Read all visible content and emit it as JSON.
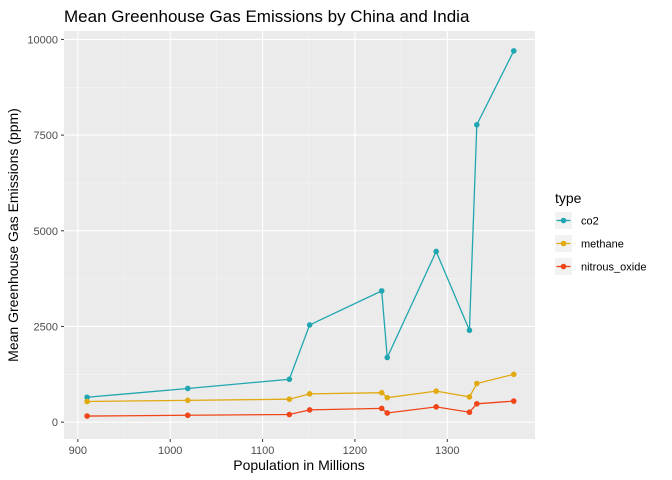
{
  "chart_data": {
    "type": "line",
    "title": "Mean Greenhouse Gas Emissions by China and India",
    "xlabel": "Population in Millions",
    "ylabel": "Mean Greenhouse Gas Emissions (ppm)",
    "xlim": [
      885,
      1395
    ],
    "ylim": [
      -440,
      10220
    ],
    "x_ticks": [
      900,
      1000,
      1100,
      1200,
      1300
    ],
    "y_ticks": [
      0,
      2500,
      5000,
      7500,
      10000
    ],
    "grid": true,
    "legend": {
      "title": "type",
      "position": "right"
    },
    "x": [
      910,
      1019,
      1129,
      1151,
      1229,
      1235,
      1288,
      1324,
      1332,
      1372
    ],
    "series": [
      {
        "name": "co2",
        "color": "#20A6B0",
        "values": [
          650,
          880,
          1120,
          2540,
          3430,
          1690,
          4460,
          2400,
          7770,
          9700
        ]
      },
      {
        "name": "methane",
        "color": "#E0AA10",
        "values": [
          540,
          570,
          600,
          740,
          770,
          640,
          810,
          660,
          1010,
          1250
        ]
      },
      {
        "name": "nitrous_oxide",
        "color": "#F04518",
        "values": [
          160,
          180,
          200,
          320,
          360,
          240,
          400,
          260,
          480,
          550
        ]
      }
    ]
  }
}
